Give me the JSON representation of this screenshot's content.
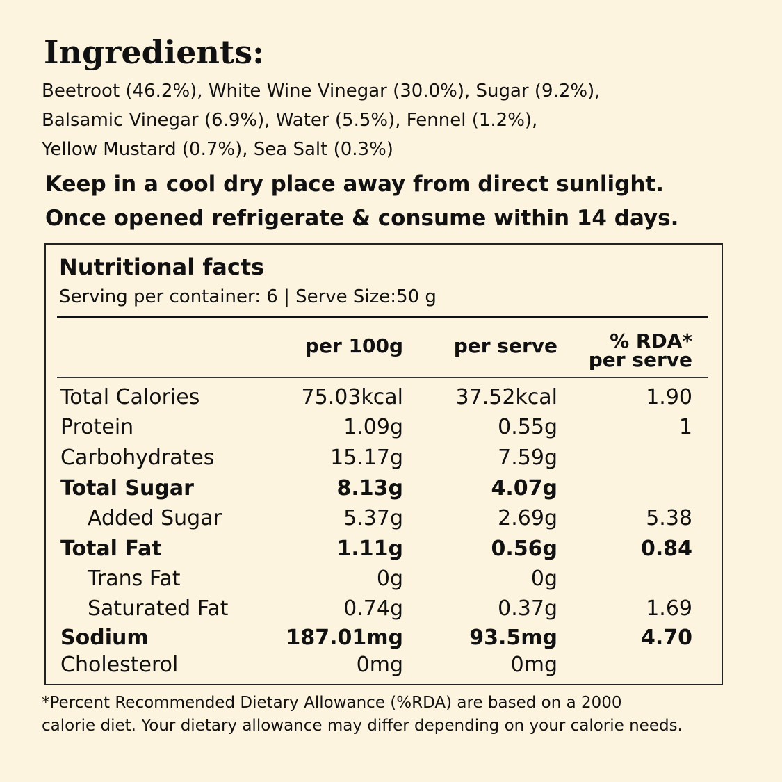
{
  "header": {
    "title": "Ingredients:"
  },
  "ingredients": [
    "Beetroot (46.2%), White Wine Vinegar (30.0%), Sugar (9.2%),",
    "Balsamic Vinegar (6.9%), Water (5.5%), Fennel (1.2%),",
    "Yellow Mustard (0.7%), Sea Salt (0.3%)"
  ],
  "storage": [
    "Keep in a cool dry place away from direct sunlight.",
    "Once opened refrigerate & consume within 14 days."
  ],
  "nutrition": {
    "title": "Nutritional facts",
    "serving": "Serving per container: 6 | Serve Size:50 g",
    "columns": [
      "per 100g",
      "per serve",
      "% RDA*",
      "per serve"
    ],
    "rows": [
      [
        "Total Calories",
        "75.03kcal",
        "37.52kcal",
        "1.90"
      ],
      [
        "Protein",
        "1.09g",
        "0.55g",
        "1"
      ],
      [
        "Carbohydrates",
        "15.17g",
        "7.59g",
        null
      ],
      [
        "Total Sugar",
        "8.13g",
        "4.07g",
        null
      ],
      [
        "Added Sugar",
        "5.37g",
        "2.69g",
        "5.38"
      ],
      [
        "Total Fat",
        "1.11g",
        "0.56g",
        "0.84"
      ],
      [
        "Trans Fat",
        "0g",
        "0g",
        null
      ],
      [
        "Saturated Fat",
        "0.74g",
        "0.37g",
        "1.69"
      ],
      [
        "Sodium",
        "187.01mg",
        "93.5mg",
        "4.70"
      ],
      [
        "Cholesterol",
        "0mg",
        "0mg",
        null
      ]
    ]
  },
  "footnote": [
    "*Percent Recommended Dietary Allowance (%RDA) are based on a 2000",
    "calorie diet. Your dietary allowance may differ depending on your calorie needs."
  ]
}
